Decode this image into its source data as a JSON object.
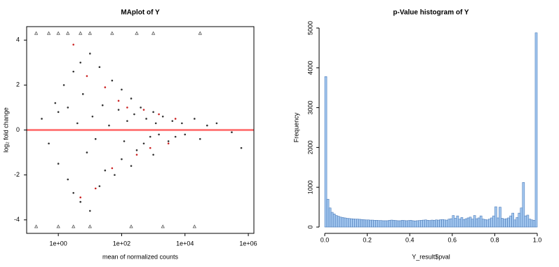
{
  "chart_data": [
    {
      "type": "scatter",
      "title": "MAplot of Y",
      "xlabel": "mean of normalized counts",
      "ylabel": "log₂ fold change",
      "xscale": "log",
      "xlim": [
        0.1,
        1500000
      ],
      "xticks": [
        {
          "value": 1,
          "label": "1e+00"
        },
        {
          "value": 100,
          "label": "1e+02"
        },
        {
          "value": 10000,
          "label": "1e+04"
        },
        {
          "value": 1000000,
          "label": "1e+06"
        }
      ],
      "ylim": [
        -4.6,
        4.6
      ],
      "yticks": [
        -4,
        -2,
        0,
        2,
        4
      ],
      "frame": true,
      "hline": {
        "value": 0,
        "color": "#ff6666"
      },
      "series": [
        {
          "color": "#333333",
          "shape": "circle",
          "x": [
            0.3,
            0.5,
            0.8,
            1,
            1,
            1.5,
            2,
            2,
            3,
            3,
            4,
            5,
            5,
            6,
            8,
            10,
            10,
            12,
            15,
            20,
            20,
            25,
            30,
            40,
            50,
            60,
            80,
            100,
            100,
            120,
            150,
            200,
            200,
            250,
            300,
            400,
            500,
            600,
            800,
            1000,
            1000,
            1200,
            1500,
            2000,
            3000,
            4000,
            5000,
            8000,
            10000,
            20000,
            30000,
            50000,
            100000,
            300000,
            600000
          ],
          "values": [
            0.5,
            -0.6,
            1.2,
            -1.5,
            0.8,
            2.0,
            -2.2,
            1.0,
            2.6,
            -2.8,
            0.3,
            3.0,
            -3.2,
            1.6,
            -1.0,
            3.4,
            -3.6,
            0.6,
            -0.4,
            2.8,
            -2.5,
            1.1,
            -1.8,
            0.2,
            2.2,
            -2.0,
            0.9,
            1.8,
            -1.3,
            -0.5,
            0.4,
            1.4,
            -1.6,
            0.7,
            -0.9,
            1.0,
            -0.6,
            0.5,
            -0.3,
            0.8,
            -1.1,
            0.3,
            -0.2,
            0.6,
            -0.5,
            0.4,
            -0.3,
            0.3,
            -0.2,
            0.5,
            -0.4,
            0.2,
            0.3,
            -0.1,
            -0.8
          ]
        },
        {
          "color": "#cc2222",
          "shape": "circle",
          "x": [
            3,
            5,
            8,
            15,
            30,
            50,
            80,
            150,
            300,
            500,
            800,
            1500,
            3000,
            5000
          ],
          "values": [
            3.8,
            -3.0,
            2.4,
            -2.6,
            1.9,
            -1.7,
            1.3,
            1.0,
            -1.1,
            0.9,
            -0.8,
            0.7,
            -0.6,
            0.5
          ]
        },
        {
          "color": "#555555",
          "shape": "triangle",
          "x": [
            0.2,
            0.5,
            1,
            2,
            5,
            10,
            50,
            300,
            1000,
            30000,
            0.2,
            1,
            3,
            10,
            200,
            2000,
            20000
          ],
          "values": [
            4.3,
            4.3,
            4.3,
            4.3,
            4.3,
            4.3,
            4.3,
            4.3,
            4.3,
            4.3,
            -4.3,
            -4.3,
            -4.3,
            -4.3,
            -4.3,
            -4.3,
            -4.3
          ]
        }
      ]
    },
    {
      "type": "histogram",
      "title": "p-Value histogram of Y",
      "xlabel": "Y_result$pval",
      "ylabel": "Frequency",
      "color": "#a4c8f0",
      "edgecolor": "#4a7ab8",
      "xlim": [
        0,
        1
      ],
      "xticks": [
        {
          "value": 0,
          "label": "0.0"
        },
        0.2,
        0.4,
        0.6,
        0.8,
        {
          "value": 1,
          "label": "1.0"
        }
      ],
      "ylim": [
        0,
        5000
      ],
      "yticks": [
        0,
        1000,
        2000,
        3000,
        4000,
        5000
      ],
      "bins": [
        0,
        0.01,
        0.02,
        0.03,
        0.04,
        0.05,
        0.06,
        0.07,
        0.08,
        0.09,
        0.1,
        0.11,
        0.12,
        0.13,
        0.14,
        0.15,
        0.16,
        0.17,
        0.18,
        0.19,
        0.2,
        0.21,
        0.22,
        0.23,
        0.24,
        0.25,
        0.26,
        0.27,
        0.28,
        0.29,
        0.3,
        0.31,
        0.32,
        0.33,
        0.34,
        0.35,
        0.36,
        0.37,
        0.38,
        0.39,
        0.4,
        0.41,
        0.42,
        0.43,
        0.44,
        0.45,
        0.46,
        0.47,
        0.48,
        0.49,
        0.5,
        0.51,
        0.52,
        0.53,
        0.54,
        0.55,
        0.56,
        0.57,
        0.58,
        0.59,
        0.6,
        0.61,
        0.62,
        0.63,
        0.64,
        0.65,
        0.66,
        0.67,
        0.68,
        0.69,
        0.7,
        0.71,
        0.72,
        0.73,
        0.74,
        0.75,
        0.76,
        0.77,
        0.78,
        0.79,
        0.8,
        0.81,
        0.82,
        0.83,
        0.84,
        0.85,
        0.86,
        0.87,
        0.88,
        0.89,
        0.9,
        0.91,
        0.92,
        0.93,
        0.94,
        0.95,
        0.96,
        0.97,
        0.98,
        0.99,
        1
      ],
      "values": [
        3780,
        700,
        480,
        370,
        330,
        290,
        270,
        250,
        240,
        230,
        220,
        215,
        210,
        205,
        200,
        200,
        195,
        190,
        185,
        180,
        180,
        175,
        175,
        170,
        170,
        165,
        165,
        160,
        160,
        160,
        170,
        175,
        170,
        165,
        160,
        160,
        170,
        165,
        160,
        165,
        170,
        160,
        155,
        160,
        165,
        170,
        175,
        180,
        170,
        165,
        175,
        170,
        180,
        175,
        185,
        190,
        180,
        175,
        200,
        210,
        290,
        220,
        280,
        200,
        240,
        190,
        210,
        230,
        250,
        200,
        290,
        210,
        230,
        280,
        200,
        190,
        180,
        200,
        230,
        280,
        510,
        230,
        500,
        220,
        200,
        210,
        230,
        280,
        350,
        180,
        240,
        350,
        480,
        1120,
        280,
        300,
        200,
        180,
        170,
        4880
      ]
    }
  ]
}
